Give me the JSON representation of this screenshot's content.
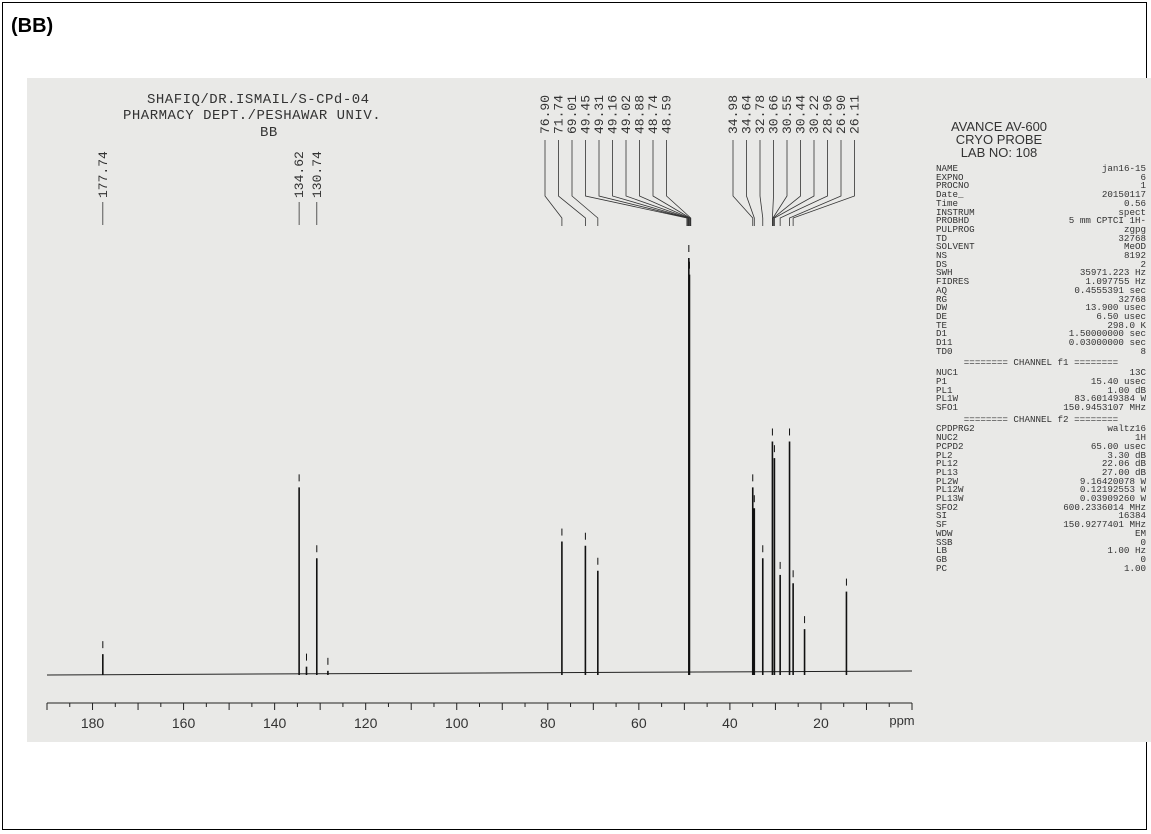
{
  "panel_label": "(BB)",
  "header": {
    "line1": "SHAFIQ/DR.ISMAIL/S-CPd-04",
    "line2": "PHARMACY DEPT./PESHAWAR UNIV.",
    "line3": "BB"
  },
  "instrument": {
    "line1": "AVANCE AV-600",
    "line2": "CRYO PROBE",
    "line3": "LAB NO: 108"
  },
  "acquisition_params": [
    {
      "name": "NAME",
      "value": "jan16-15"
    },
    {
      "name": "EXPNO",
      "value": "6"
    },
    {
      "name": "PROCNO",
      "value": "1"
    },
    {
      "name": "Date_",
      "value": "20150117"
    },
    {
      "name": "Time",
      "value": "0.56"
    },
    {
      "name": "INSTRUM",
      "value": "spect"
    },
    {
      "name": "PROBHD",
      "value": "5 mm CPTCI 1H-"
    },
    {
      "name": "PULPROG",
      "value": "zgpg"
    },
    {
      "name": "TD",
      "value": "32768"
    },
    {
      "name": "SOLVENT",
      "value": "MeOD"
    },
    {
      "name": "NS",
      "value": "8192"
    },
    {
      "name": "DS",
      "value": "2"
    },
    {
      "name": "SWH",
      "value": "35971.223 Hz"
    },
    {
      "name": "FIDRES",
      "value": "1.097755 Hz"
    },
    {
      "name": "AQ",
      "value": "0.4555391 sec"
    },
    {
      "name": "RG",
      "value": "32768"
    },
    {
      "name": "DW",
      "value": "13.900 usec"
    },
    {
      "name": "DE",
      "value": "6.50 usec"
    },
    {
      "name": "TE",
      "value": "298.0 K"
    },
    {
      "name": "D1",
      "value": "1.50000000 sec"
    },
    {
      "name": "D11",
      "value": "0.03000000 sec"
    },
    {
      "name": "TD0",
      "value": "8"
    }
  ],
  "channel_f1_title": "======== CHANNEL f1 ========",
  "channel_f1_params": [
    {
      "name": "NUC1",
      "value": "13C"
    },
    {
      "name": "P1",
      "value": "15.40 usec"
    },
    {
      "name": "PL1",
      "value": "1.00 dB"
    },
    {
      "name": "PL1W",
      "value": "83.60149384 W"
    },
    {
      "name": "SFO1",
      "value": "150.9453107 MHz"
    }
  ],
  "channel_f2_title": "======== CHANNEL f2 ========",
  "channel_f2_params": [
    {
      "name": "CPDPRG2",
      "value": "waltz16"
    },
    {
      "name": "NUC2",
      "value": "1H"
    },
    {
      "name": "PCPD2",
      "value": "65.00 usec"
    },
    {
      "name": "PL2",
      "value": "3.30 dB"
    },
    {
      "name": "PL12",
      "value": "22.06 dB"
    },
    {
      "name": "PL13",
      "value": "27.00 dB"
    },
    {
      "name": "PL2W",
      "value": "9.16420078 W"
    },
    {
      "name": "PL12W",
      "value": "0.12192553 W"
    },
    {
      "name": "PL13W",
      "value": "0.03909260 W"
    },
    {
      "name": "SFO2",
      "value": "600.2336014 MHz"
    },
    {
      "name": "SI",
      "value": "16384"
    },
    {
      "name": "SF",
      "value": "150.9277401 MHz"
    },
    {
      "name": "WDW",
      "value": "EM"
    },
    {
      "name": "SSB",
      "value": "0"
    },
    {
      "name": "LB",
      "value": "1.00 Hz"
    },
    {
      "name": "GB",
      "value": "0"
    },
    {
      "name": "PC",
      "value": "1.00"
    }
  ],
  "chart_data": {
    "type": "line",
    "xlabel": "ppm",
    "xlim": [
      190,
      0
    ],
    "x_ticks": [
      180,
      160,
      140,
      120,
      100,
      80,
      60,
      40,
      20
    ],
    "baseline_color": "#222222",
    "peak_color": "#111111",
    "peak_labels": [
      "177.74",
      "134.62",
      "130.74",
      "76.90",
      "71.74",
      "69.01",
      "49.45",
      "49.31",
      "49.16",
      "49.02",
      "48.88",
      "48.74",
      "48.59",
      "34.98",
      "34.64",
      "32.78",
      "30.66",
      "30.55",
      "30.44",
      "30.22",
      "28.96",
      "26.90",
      "26.11"
    ],
    "peaks": [
      {
        "ppm": 177.74,
        "intensity": 0.05
      },
      {
        "ppm": 134.62,
        "intensity": 0.45
      },
      {
        "ppm": 133.0,
        "intensity": 0.02
      },
      {
        "ppm": 130.74,
        "intensity": 0.28
      },
      {
        "ppm": 128.3,
        "intensity": 0.01
      },
      {
        "ppm": 76.9,
        "intensity": 0.32
      },
      {
        "ppm": 71.74,
        "intensity": 0.31
      },
      {
        "ppm": 69.01,
        "intensity": 0.25
      },
      {
        "ppm": 49.02,
        "intensity": 1.0
      },
      {
        "ppm": 48.88,
        "intensity": 0.96
      },
      {
        "ppm": 34.98,
        "intensity": 0.45
      },
      {
        "ppm": 34.64,
        "intensity": 0.4
      },
      {
        "ppm": 32.78,
        "intensity": 0.28
      },
      {
        "ppm": 30.66,
        "intensity": 0.56
      },
      {
        "ppm": 30.22,
        "intensity": 0.52
      },
      {
        "ppm": 28.96,
        "intensity": 0.24
      },
      {
        "ppm": 26.9,
        "intensity": 0.56
      },
      {
        "ppm": 26.11,
        "intensity": 0.22
      },
      {
        "ppm": 23.6,
        "intensity": 0.11
      },
      {
        "ppm": 14.4,
        "intensity": 0.2
      }
    ]
  }
}
